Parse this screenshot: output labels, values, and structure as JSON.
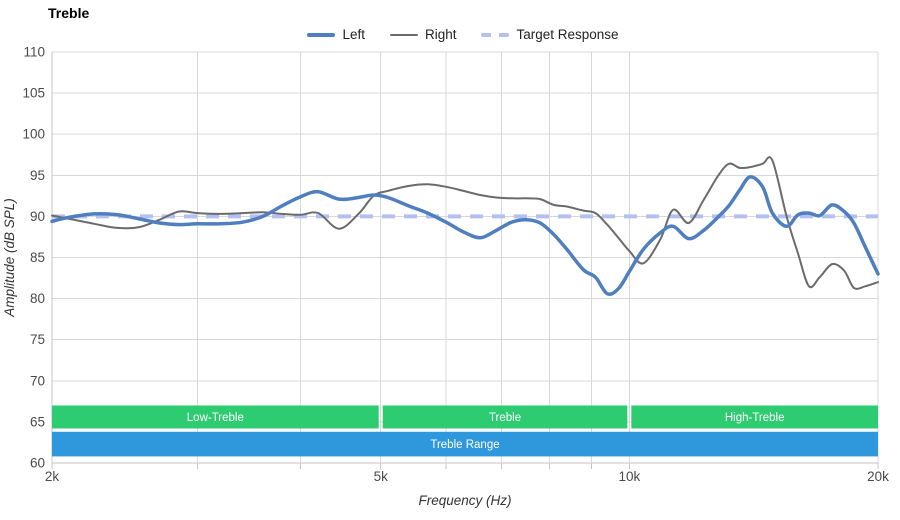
{
  "header": {
    "title": "Treble"
  },
  "legend": {
    "items": [
      {
        "label": "Left",
        "color": "#4f7fbf",
        "style": "solid-thick"
      },
      {
        "label": "Right",
        "color": "#6b6b6b",
        "style": "solid-thin"
      },
      {
        "label": "Target Response",
        "color": "#b4c0f2",
        "style": "dashed"
      }
    ]
  },
  "colors": {
    "grid": "#d8d8d8",
    "axis": "#c5c5c5",
    "tick_text": "#4a4a4a",
    "axis_title_text": "#333333",
    "left_line": "#4f7fbf",
    "right_line": "#6b6b6b",
    "target_line": "#b4c0f2",
    "band_green": "#2ecc71",
    "band_blue": "#2f97db",
    "band_text": "#ffffff"
  },
  "chart_data": {
    "type": "line",
    "title": "Treble",
    "xlabel": "Frequency (Hz)",
    "ylabel": "Amplitude (dB SPL)",
    "x_scale": "log",
    "xlim": [
      2000,
      20000
    ],
    "ylim": [
      60,
      110
    ],
    "y_ticks": [
      60,
      65,
      70,
      75,
      80,
      85,
      90,
      95,
      100,
      105,
      110
    ],
    "x_gridlines": [
      2000,
      3000,
      4000,
      5000,
      6000,
      7000,
      8000,
      9000,
      10000,
      20000
    ],
    "x_tick_labels": [
      {
        "value": 2000,
        "label": "2k"
      },
      {
        "value": 5000,
        "label": "5k"
      },
      {
        "value": 10000,
        "label": "10k"
      },
      {
        "value": 20000,
        "label": "20k"
      }
    ],
    "grid": true,
    "legend_position": "top-center",
    "target_response_db": 90,
    "x": [
      2000,
      2100,
      2250,
      2400,
      2550,
      2700,
      2850,
      3000,
      3200,
      3400,
      3600,
      3800,
      4000,
      4200,
      4450,
      4700,
      4900,
      5100,
      5400,
      5700,
      6000,
      6300,
      6600,
      6900,
      7200,
      7500,
      7800,
      8100,
      8400,
      8800,
      9100,
      9400,
      9700,
      10000,
      10400,
      10900,
      11300,
      11800,
      12300,
      12800,
      13200,
      13600,
      14000,
      14500,
      14900,
      15500,
      16000,
      16500,
      17000,
      17600,
      18200,
      18700,
      19300,
      20000
    ],
    "series": [
      {
        "name": "Left",
        "values": [
          89.4,
          89.9,
          90.3,
          90.2,
          89.7,
          89.2,
          89.0,
          89.1,
          89.1,
          89.3,
          90.0,
          91.3,
          92.4,
          93.0,
          92.1,
          92.3,
          92.6,
          92.3,
          91.3,
          90.4,
          89.3,
          88.1,
          87.4,
          88.3,
          89.3,
          89.6,
          89.2,
          87.8,
          86.0,
          83.5,
          82.6,
          80.6,
          81.2,
          83.3,
          86.0,
          88.0,
          88.8,
          87.3,
          88.3,
          89.9,
          91.3,
          93.2,
          94.8,
          93.6,
          90.4,
          88.8,
          90.2,
          90.4,
          90.1,
          91.4,
          90.6,
          89.2,
          86.3,
          83.0
        ]
      },
      {
        "name": "Right",
        "values": [
          90.1,
          89.7,
          89.1,
          88.6,
          88.7,
          89.6,
          90.6,
          90.4,
          90.3,
          90.4,
          90.5,
          90.3,
          90.2,
          90.4,
          88.5,
          90.3,
          92.5,
          93.1,
          93.7,
          93.9,
          93.6,
          93.1,
          92.6,
          92.3,
          92.2,
          92.2,
          92.1,
          91.4,
          91.2,
          90.7,
          90.4,
          89.0,
          87.4,
          85.8,
          84.3,
          87.2,
          90.8,
          89.2,
          92.0,
          94.9,
          96.4,
          95.9,
          96.0,
          96.4,
          96.8,
          90.0,
          85.5,
          81.5,
          82.6,
          84.2,
          83.4,
          81.3,
          81.5,
          82.0
        ]
      }
    ],
    "bands": {
      "sections": [
        {
          "label": "Low-Treble",
          "from": 2000,
          "to": 5000
        },
        {
          "label": "Treble",
          "from": 5000,
          "to": 10000
        },
        {
          "label": "High-Treble",
          "from": 10000,
          "to": 20000
        }
      ],
      "sections_db_span": [
        64.2,
        67.0
      ],
      "range": {
        "label": "Treble Range",
        "from": 2000,
        "to": 20000
      },
      "range_db_span": [
        60.8,
        63.8
      ]
    }
  }
}
